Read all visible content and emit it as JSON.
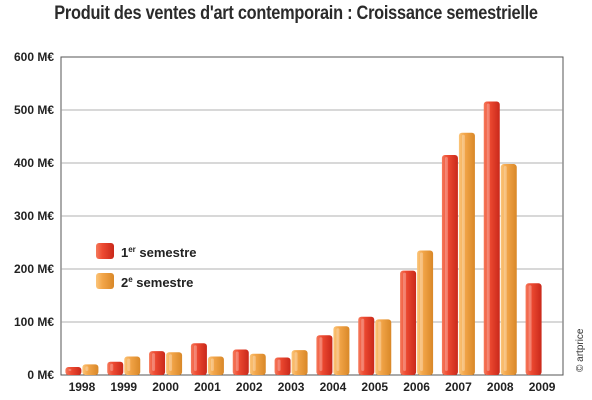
{
  "chart_data": {
    "type": "bar",
    "title": "Produit  des ventes d'art contemporain : Croissance semestrielle",
    "categories": [
      "1998",
      "1999",
      "2000",
      "2001",
      "2002",
      "2003",
      "2004",
      "2005",
      "2006",
      "2007",
      "2008",
      "2009"
    ],
    "series": [
      {
        "name_prefix": "1",
        "name_sup": "er",
        "name_suffix": " semestre",
        "color": "#e63b2a",
        "values": [
          15,
          25,
          45,
          60,
          48,
          33,
          75,
          110,
          197,
          415,
          516,
          173
        ]
      },
      {
        "name_prefix": "2",
        "name_sup": "e",
        "name_suffix": " semestre",
        "color": "#f0a040",
        "values": [
          20,
          35,
          43,
          35,
          40,
          47,
          92,
          105,
          235,
          457,
          398,
          null
        ]
      }
    ],
    "y_ticks": [
      "0 M€",
      "100 M€",
      "200 M€",
      "300 M€",
      "400 M€",
      "500 M€",
      "600 M€"
    ],
    "ylim": [
      0,
      600
    ],
    "grid": true,
    "legend_position": "left-middle",
    "credit": "© artprice"
  }
}
